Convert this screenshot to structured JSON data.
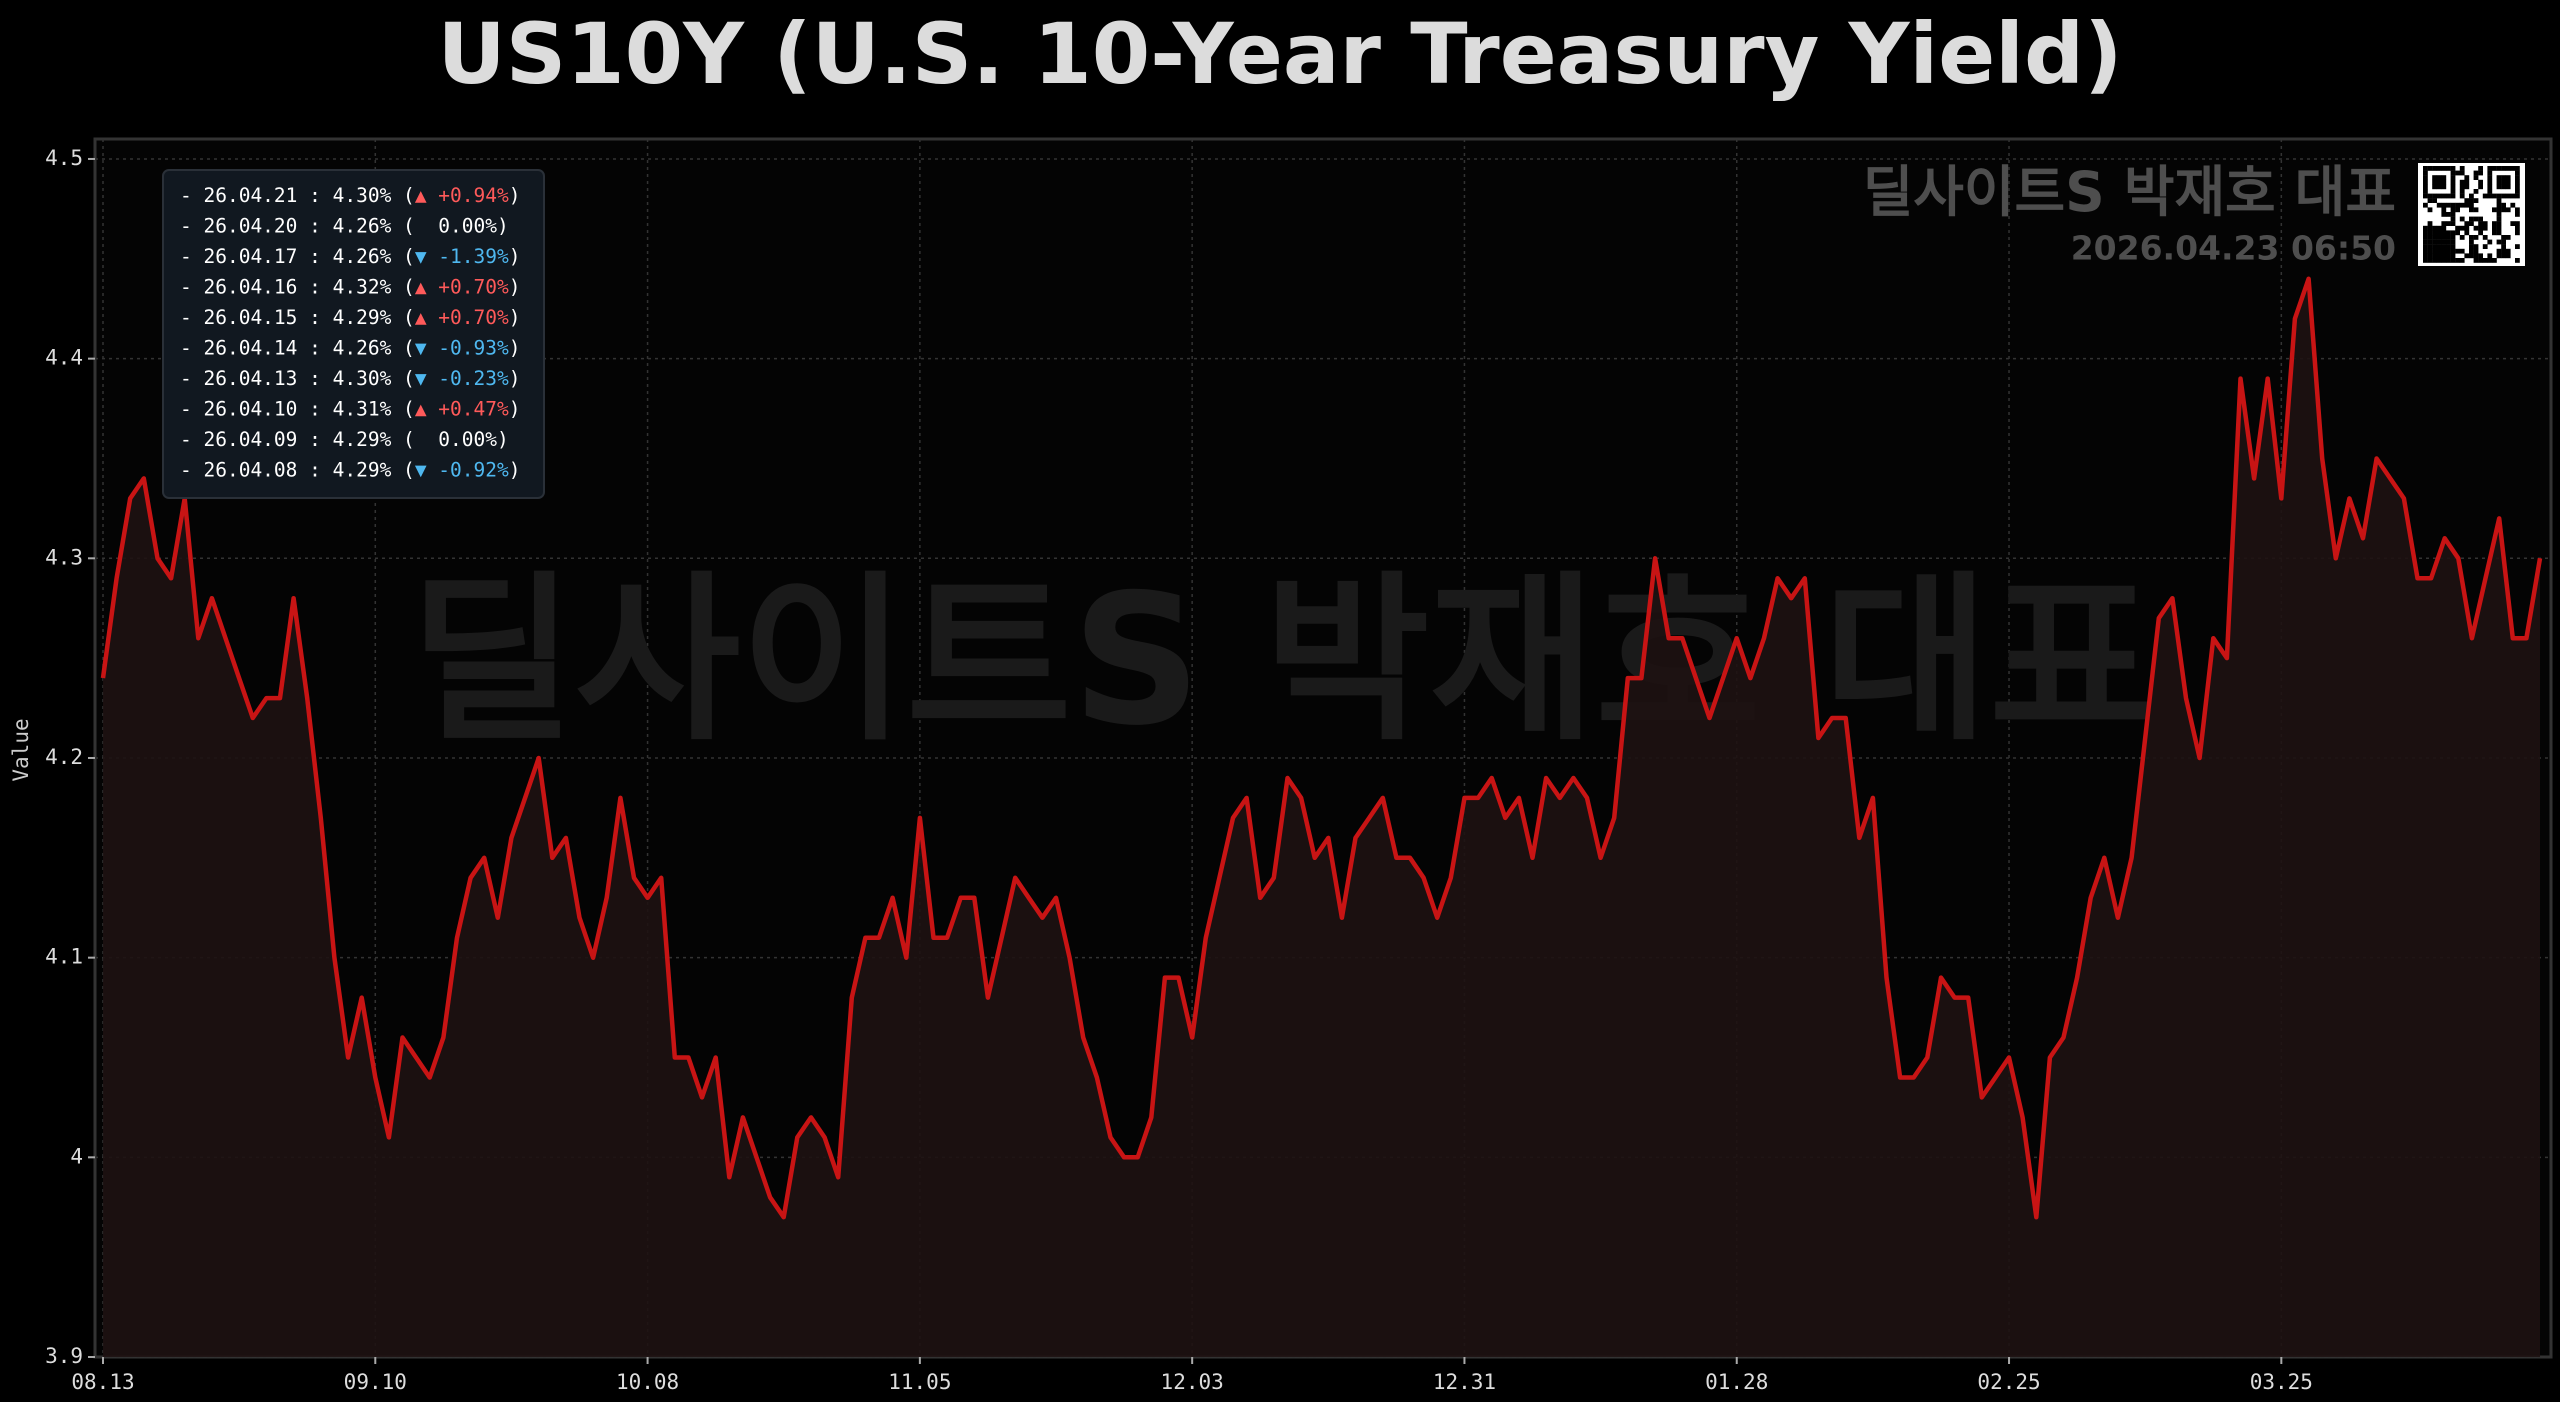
{
  "chart_data": {
    "type": "line",
    "title": "US10Y (U.S. 10-Year Treasury Yield)",
    "y_label": "Value",
    "watermark": "딜사이트S 박재호 대표",
    "stamp": "2026.04.23 06:50",
    "color": "#c81414",
    "fill_color": "#1e1212",
    "grid": true,
    "ylim": [
      3.9,
      4.51
    ],
    "yticks": [
      3.9,
      4.0,
      4.1,
      4.2,
      4.3,
      4.4,
      4.5
    ],
    "categories": [
      "08.13",
      null,
      null,
      null,
      null,
      null,
      null,
      null,
      null,
      null,
      null,
      null,
      null,
      null,
      null,
      null,
      null,
      null,
      null,
      null,
      "09.10",
      null,
      null,
      null,
      null,
      null,
      null,
      null,
      null,
      null,
      null,
      null,
      null,
      null,
      null,
      null,
      null,
      null,
      null,
      null,
      "10.08",
      null,
      null,
      null,
      null,
      null,
      null,
      null,
      null,
      null,
      null,
      null,
      null,
      null,
      null,
      null,
      null,
      null,
      null,
      null,
      "11.05",
      null,
      null,
      null,
      null,
      null,
      null,
      null,
      null,
      null,
      null,
      null,
      null,
      null,
      null,
      null,
      null,
      null,
      null,
      null,
      "12.03",
      null,
      null,
      null,
      null,
      null,
      null,
      null,
      null,
      null,
      null,
      null,
      null,
      null,
      null,
      null,
      null,
      null,
      null,
      null,
      "12.31",
      null,
      null,
      null,
      null,
      null,
      null,
      null,
      null,
      null,
      null,
      null,
      null,
      null,
      null,
      null,
      null,
      null,
      null,
      null,
      "01.28",
      null,
      null,
      null,
      null,
      null,
      null,
      null,
      null,
      null,
      null,
      null,
      null,
      null,
      null,
      null,
      null,
      null,
      null,
      null,
      "02.25",
      null,
      null,
      null,
      null,
      null,
      null,
      null,
      null,
      null,
      null,
      null,
      null,
      null,
      null,
      null,
      null,
      null,
      null,
      null,
      "03.25",
      null,
      null,
      null,
      null,
      null,
      null,
      null,
      null,
      null,
      null,
      null,
      null,
      null,
      null,
      null,
      null,
      null,
      null,
      null
    ],
    "values": [
      4.24,
      4.29,
      4.33,
      4.34,
      4.3,
      4.29,
      4.33,
      4.26,
      4.28,
      4.26,
      4.24,
      4.22,
      4.23,
      4.23,
      4.28,
      4.23,
      4.17,
      4.1,
      4.05,
      4.08,
      4.04,
      4.01,
      4.06,
      4.05,
      4.04,
      4.06,
      4.11,
      4.14,
      4.15,
      4.12,
      4.16,
      4.18,
      4.2,
      4.15,
      4.16,
      4.12,
      4.1,
      4.13,
      4.18,
      4.14,
      4.13,
      4.14,
      4.05,
      4.05,
      4.03,
      4.05,
      3.99,
      4.02,
      4.0,
      3.98,
      3.97,
      4.01,
      4.02,
      4.01,
      3.99,
      4.08,
      4.11,
      4.11,
      4.13,
      4.1,
      4.17,
      4.11,
      4.11,
      4.13,
      4.13,
      4.08,
      4.11,
      4.14,
      4.13,
      4.12,
      4.13,
      4.1,
      4.06,
      4.04,
      4.01,
      4.0,
      4.0,
      4.02,
      4.09,
      4.09,
      4.06,
      4.11,
      4.14,
      4.17,
      4.18,
      4.13,
      4.14,
      4.19,
      4.18,
      4.15,
      4.16,
      4.12,
      4.16,
      4.17,
      4.18,
      4.15,
      4.15,
      4.14,
      4.12,
      4.14,
      4.18,
      4.18,
      4.19,
      4.17,
      4.18,
      4.15,
      4.19,
      4.18,
      4.19,
      4.18,
      4.15,
      4.17,
      4.24,
      4.24,
      4.3,
      4.26,
      4.26,
      4.24,
      4.22,
      4.24,
      4.26,
      4.24,
      4.26,
      4.29,
      4.28,
      4.29,
      4.21,
      4.22,
      4.22,
      4.16,
      4.18,
      4.09,
      4.04,
      4.04,
      4.05,
      4.09,
      4.08,
      4.08,
      4.03,
      4.04,
      4.05,
      4.02,
      3.97,
      4.05,
      4.06,
      4.09,
      4.13,
      4.15,
      4.12,
      4.15,
      4.21,
      4.27,
      4.28,
      4.23,
      4.2,
      4.26,
      4.25,
      4.39,
      4.34,
      4.39,
      4.33,
      4.42,
      4.44,
      4.35,
      4.3,
      4.33,
      4.31,
      4.35,
      4.34,
      4.33,
      4.29,
      4.29,
      4.31,
      4.3,
      4.26,
      4.29,
      4.32,
      4.26,
      4.26,
      4.3
    ],
    "info_box": [
      {
        "head": "- 26.04.21 : 4.30% (",
        "change": "▲ +0.94%",
        "tail": ")",
        "color": "#ff5a5a"
      },
      {
        "head": "- 26.04.20 : 4.26% (",
        "change": "  0.00%",
        "tail": ")",
        "color": "#ffffff"
      },
      {
        "head": "- 26.04.17 : 4.26% (",
        "change": "▼ -1.39%",
        "tail": ")",
        "color": "#4fb8f0"
      },
      {
        "head": "- 26.04.16 : 4.32% (",
        "change": "▲ +0.70%",
        "tail": ")",
        "color": "#ff5a5a"
      },
      {
        "head": "- 26.04.15 : 4.29% (",
        "change": "▲ +0.70%",
        "tail": ")",
        "color": "#ff5a5a"
      },
      {
        "head": "- 26.04.14 : 4.26% (",
        "change": "▼ -0.93%",
        "tail": ")",
        "color": "#4fb8f0"
      },
      {
        "head": "- 26.04.13 : 4.30% (",
        "change": "▼ -0.23%",
        "tail": ")",
        "color": "#4fb8f0"
      },
      {
        "head": "- 26.04.10 : 4.31% (",
        "change": "▲ +0.47%",
        "tail": ")",
        "color": "#ff5a5a"
      },
      {
        "head": "- 26.04.09 : 4.29% (",
        "change": "  0.00%",
        "tail": ")",
        "color": "#ffffff"
      },
      {
        "head": "- 26.04.08 : 4.29% (",
        "change": "▼ -0.92%",
        "tail": ")",
        "color": "#4fb8f0"
      }
    ]
  }
}
